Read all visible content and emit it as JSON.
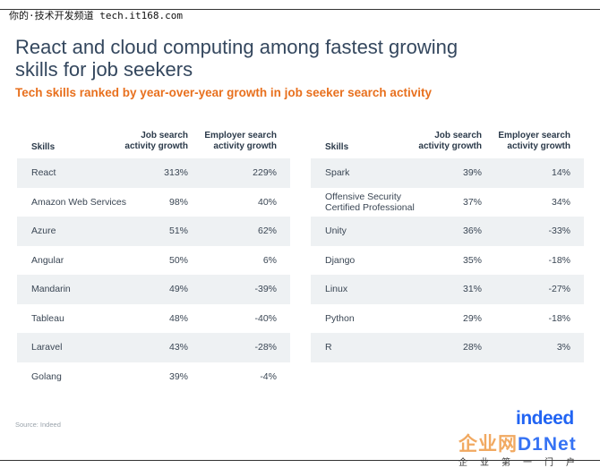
{
  "watermark_top": "你的·技术开发频道 tech.it168.com",
  "title_line1": "React and cloud computing among fastest growing",
  "title_line2": "skills for job seekers",
  "subtitle": "Tech skills ranked by year-over-year growth in job seeker search activity",
  "headers": {
    "skills": "Skills",
    "job_line1": "Job search",
    "job_line2": "activity growth",
    "emp_line1": "Employer search",
    "emp_line2": "activity growth"
  },
  "left_table": [
    {
      "skill": "React",
      "job": "313%",
      "emp": "229%"
    },
    {
      "skill": "Amazon Web Services",
      "job": "98%",
      "emp": "40%"
    },
    {
      "skill": "Azure",
      "job": "51%",
      "emp": "62%"
    },
    {
      "skill": "Angular",
      "job": "50%",
      "emp": "6%"
    },
    {
      "skill": "Mandarin",
      "job": "49%",
      "emp": "-39%"
    },
    {
      "skill": "Tableau",
      "job": "48%",
      "emp": "-40%"
    },
    {
      "skill": "Laravel",
      "job": "43%",
      "emp": "-28%"
    },
    {
      "skill": "Golang",
      "job": "39%",
      "emp": "-4%"
    }
  ],
  "right_table": [
    {
      "skill": "Spark",
      "job": "39%",
      "emp": "14%"
    },
    {
      "skill": "Offensive Security\nCertified Professional",
      "job": "37%",
      "emp": "34%"
    },
    {
      "skill": "Unity",
      "job": "36%",
      "emp": "-33%"
    },
    {
      "skill": "Django",
      "job": "35%",
      "emp": "-18%"
    },
    {
      "skill": "Linux",
      "job": "31%",
      "emp": "-27%"
    },
    {
      "skill": "Python",
      "job": "29%",
      "emp": "-18%"
    },
    {
      "skill": "R",
      "job": "28%",
      "emp": "3%"
    }
  ],
  "source": "Source: Indeed",
  "logo": "indeed",
  "watermark_bottom_cn": "企业网",
  "watermark_bottom_brand": "D1Net",
  "watermark_bottom_line2": "企业第一门户",
  "colors": {
    "title": "#34475e",
    "subtitle": "#e8701e",
    "row_shade": "#eef1f3",
    "logo": "#2164f3"
  }
}
